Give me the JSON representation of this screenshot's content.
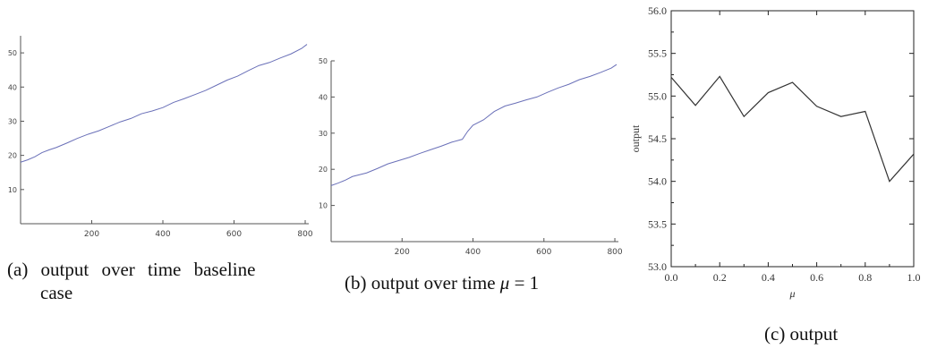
{
  "captions": {
    "a_line1": "(a) output over time baseline",
    "a_line2": "case",
    "b_prefix": "(b) output over time ",
    "b_symbol": "μ",
    "b_suffix": " = 1",
    "c": "(c) output"
  },
  "chart_data": [
    {
      "type": "line",
      "title": "",
      "xlabel": "",
      "ylabel": "",
      "xlim": [
        0,
        810
      ],
      "ylim": [
        0,
        55
      ],
      "xticks": [
        200,
        400,
        600,
        800
      ],
      "yticks": [
        10,
        20,
        30,
        40,
        50
      ],
      "line_color": "#6a70b8",
      "series": [
        {
          "x": [
            0,
            20,
            40,
            60,
            80,
            100,
            130,
            160,
            190,
            220,
            250,
            280,
            310,
            340,
            370,
            400,
            430,
            460,
            490,
            520,
            550,
            580,
            610,
            640,
            670,
            700,
            730,
            760,
            790,
            805
          ],
          "y": [
            18,
            18.7,
            19.6,
            20.8,
            21.6,
            22.3,
            23.6,
            25,
            26.2,
            27.2,
            28.5,
            29.8,
            30.8,
            32.2,
            33,
            34,
            35.5,
            36.6,
            37.8,
            39,
            40.5,
            42,
            43.2,
            44.8,
            46.3,
            47.2,
            48.5,
            49.7,
            51.3,
            52.5
          ]
        }
      ]
    },
    {
      "type": "line",
      "title": "",
      "xlabel": "",
      "ylabel": "",
      "xlim": [
        0,
        810
      ],
      "ylim": [
        0,
        50
      ],
      "xticks": [
        200,
        400,
        600,
        800
      ],
      "yticks": [
        10,
        20,
        30,
        40,
        50
      ],
      "line_color": "#6a70b8",
      "series": [
        {
          "x": [
            0,
            20,
            40,
            60,
            80,
            100,
            130,
            160,
            190,
            220,
            250,
            280,
            310,
            340,
            370,
            385,
            400,
            430,
            460,
            490,
            520,
            550,
            580,
            610,
            640,
            670,
            700,
            730,
            760,
            790,
            805
          ],
          "y": [
            15.5,
            16.2,
            17,
            18,
            18.5,
            19,
            20.2,
            21.5,
            22.4,
            23.3,
            24.4,
            25.4,
            26.4,
            27.5,
            28.3,
            30.5,
            32.2,
            33.7,
            36,
            37.5,
            38.3,
            39.2,
            40,
            41.3,
            42.5,
            43.5,
            44.8,
            45.7,
            46.8,
            48,
            49
          ]
        }
      ]
    },
    {
      "type": "line",
      "title": "",
      "xlabel": "μ",
      "ylabel": "output",
      "xlim": [
        0.0,
        1.0
      ],
      "ylim": [
        53.0,
        56.0
      ],
      "xticks": [
        "0.0",
        "0.2",
        "0.4",
        "0.6",
        "0.8",
        "1.0"
      ],
      "yticks": [
        "53.0",
        "53.5",
        "54.0",
        "54.5",
        "55.0",
        "55.5",
        "56.0"
      ],
      "line_color": "#333333",
      "series": [
        {
          "x": [
            0.0,
            0.1,
            0.2,
            0.3,
            0.4,
            0.5,
            0.6,
            0.7,
            0.8,
            0.9,
            1.0
          ],
          "y": [
            55.22,
            54.89,
            55.23,
            54.76,
            55.04,
            55.16,
            54.88,
            54.76,
            54.82,
            54.0,
            54.32
          ]
        }
      ]
    }
  ]
}
